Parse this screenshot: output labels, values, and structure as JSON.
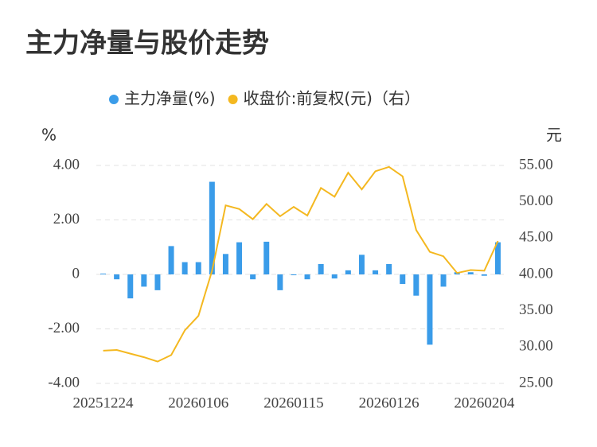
{
  "chart_data": {
    "type": "bar-line",
    "title": "主力净量与股价走势",
    "y_unit": "%",
    "y2_unit": "元",
    "categories": [
      "20251224",
      null,
      null,
      null,
      null,
      null,
      null,
      "20260106",
      null,
      null,
      null,
      null,
      null,
      null,
      "20260115",
      null,
      null,
      null,
      null,
      null,
      null,
      "20260126",
      null,
      null,
      null,
      null,
      null,
      null,
      "20260204",
      null
    ],
    "series": [
      {
        "name": "主力净量(%)",
        "kind": "bar",
        "color": "#3a9ce9",
        "values": [
          0.03,
          -0.18,
          -0.88,
          -0.45,
          -0.58,
          1.04,
          0.45,
          0.45,
          3.4,
          0.75,
          1.18,
          -0.18,
          1.2,
          -0.58,
          -0.03,
          -0.18,
          0.38,
          -0.15,
          0.15,
          0.72,
          0.15,
          0.38,
          -0.35,
          -0.78,
          -2.58,
          -0.45,
          0.08,
          0.08,
          -0.05,
          1.18
        ]
      },
      {
        "name": "收盘价:前复权(元)（右）",
        "kind": "line",
        "axis": "y2",
        "color": "#f4b820",
        "values": [
          29.5,
          29.6,
          29.1,
          28.6,
          28.0,
          28.9,
          32.3,
          34.3,
          40.5,
          49.5,
          49.0,
          47.6,
          49.7,
          48.0,
          49.3,
          48.1,
          51.9,
          50.7,
          54.0,
          51.7,
          54.2,
          54.8,
          53.5,
          46.1,
          43.1,
          42.5,
          40.2,
          40.6,
          40.5,
          44.6
        ]
      }
    ],
    "ylim": [
      -4,
      4
    ],
    "yticks": [
      {
        "value": 4,
        "label": "4.00"
      },
      {
        "value": 2,
        "label": "2.00"
      },
      0,
      {
        "value": -2,
        "label": "-2.00"
      },
      {
        "value": -4,
        "label": "-4.00"
      }
    ],
    "y2lim": [
      25,
      55
    ],
    "y2ticks": [
      {
        "value": 55,
        "label": "55.00"
      },
      {
        "value": 50,
        "label": "50.00"
      },
      {
        "value": 45,
        "label": "45.00"
      },
      {
        "value": 40,
        "label": "40.00"
      },
      {
        "value": 35,
        "label": "35.00"
      },
      {
        "value": 30,
        "label": "30.00"
      },
      {
        "value": 25,
        "label": "25.00"
      }
    ],
    "grid": true,
    "legend": "top"
  }
}
